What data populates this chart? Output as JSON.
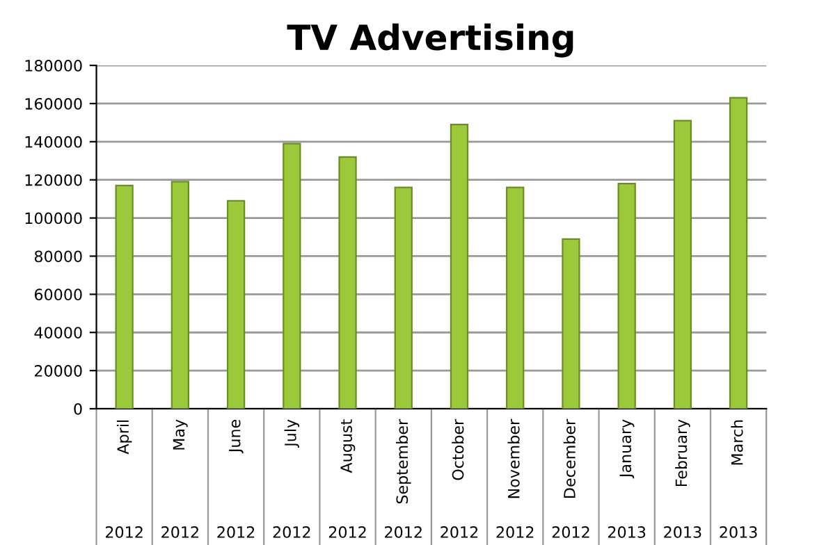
{
  "chart_data": {
    "type": "bar",
    "title": "TV Advertising",
    "categories": [
      "April\n2012",
      "May\n2012",
      "June\n2012",
      "July\n2012",
      "August\n2012",
      "September\n2012",
      "October\n2012",
      "November\n2012",
      "December\n2012",
      "January\n2013",
      "February\n2013",
      "March\n2013"
    ],
    "values": [
      117000,
      119000,
      109000,
      139000,
      132000,
      116000,
      149000,
      116000,
      89000,
      118000,
      151000,
      163000
    ],
    "color": "#9bc93a",
    "ylim": [
      0,
      180000
    ],
    "yticks": [
      0,
      20000,
      40000,
      60000,
      80000,
      100000,
      120000,
      140000,
      160000,
      180000
    ],
    "grid": "y",
    "legend": false
  }
}
